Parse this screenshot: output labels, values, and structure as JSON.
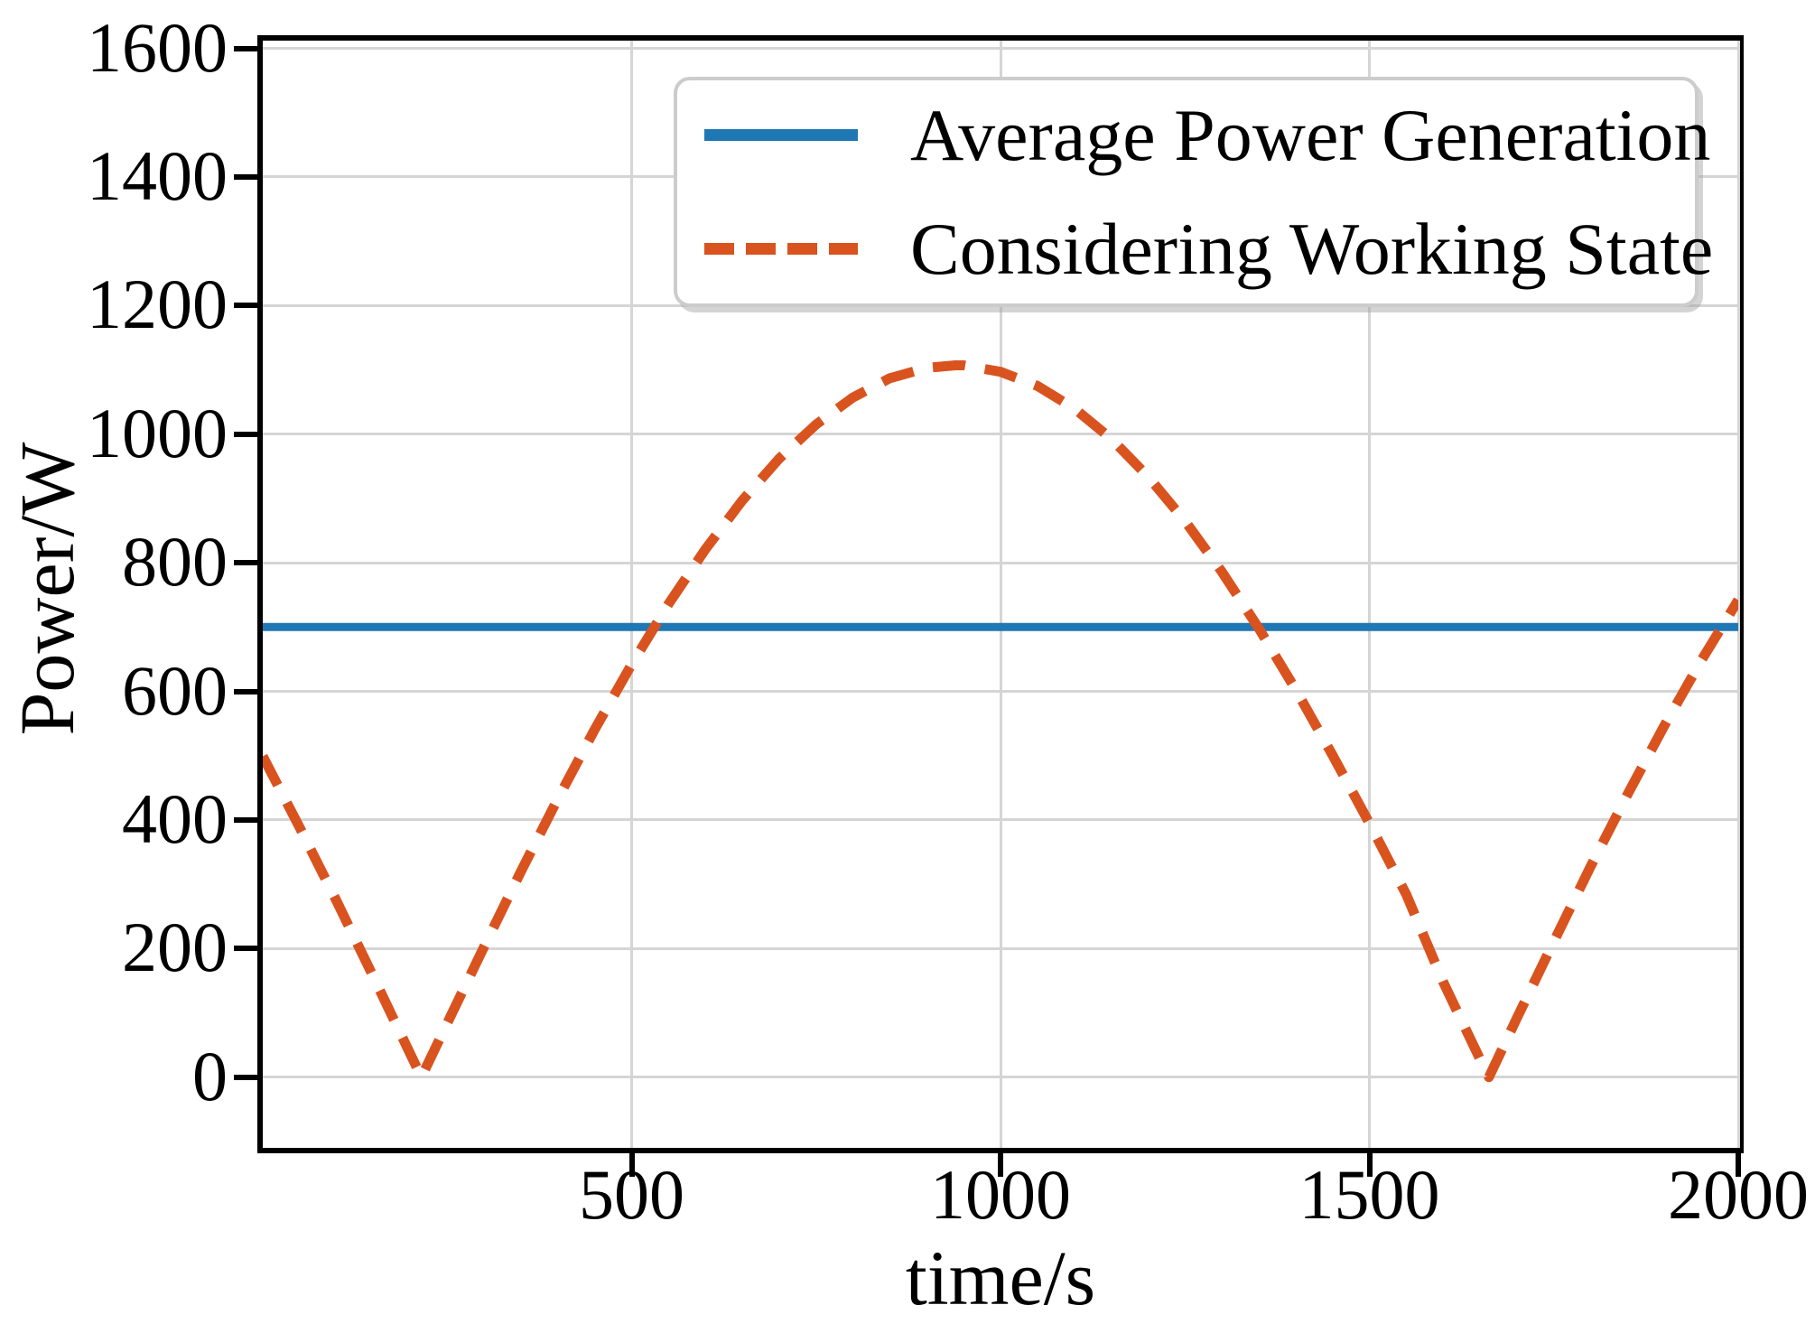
{
  "chart_data": {
    "type": "line",
    "title": "",
    "xlabel": "time/s",
    "ylabel": "Power/W",
    "xlim": [
      0,
      2000
    ],
    "ylim": [
      -110,
      1612
    ],
    "grid": true,
    "grid_color": "#d5d5d5",
    "legend_position": "upper right",
    "xticks": {
      "values": [
        500,
        1000,
        1500,
        2000
      ],
      "labels": [
        "500",
        "1000",
        "1500",
        "2000"
      ]
    },
    "yticks": {
      "values": [
        0,
        200,
        400,
        600,
        800,
        1000,
        1200,
        1400,
        1600
      ],
      "labels": [
        "0",
        "200",
        "400",
        "600",
        "800",
        "1000",
        "1200",
        "1400",
        "1600"
      ]
    },
    "series": [
      {
        "name": "Average Power Generation",
        "color": "#1f77b4",
        "style": "solid",
        "line_width": 9,
        "points": [
          [
            0,
            700
          ],
          [
            2000,
            700
          ]
        ]
      },
      {
        "name": "Considering Working State",
        "color": "#d9531f",
        "style": "dashed",
        "dash_pattern": [
          36,
          22
        ],
        "line_width": 11,
        "points": [
          [
            0,
            499
          ],
          [
            50,
            388
          ],
          [
            100,
            274
          ],
          [
            150,
            156
          ],
          [
            200,
            36
          ],
          [
            215,
            0
          ],
          [
            250,
            84
          ],
          [
            300,
            203
          ],
          [
            350,
            320
          ],
          [
            400,
            433
          ],
          [
            450,
            541
          ],
          [
            500,
            642
          ],
          [
            550,
            736
          ],
          [
            600,
            821
          ],
          [
            650,
            897
          ],
          [
            700,
            962
          ],
          [
            750,
            1015
          ],
          [
            800,
            1057
          ],
          [
            850,
            1087
          ],
          [
            900,
            1103
          ],
          [
            939,
            1107
          ],
          [
            950,
            1107
          ],
          [
            1000,
            1097
          ],
          [
            1050,
            1075
          ],
          [
            1100,
            1040
          ],
          [
            1150,
            993
          ],
          [
            1200,
            934
          ],
          [
            1250,
            865
          ],
          [
            1300,
            786
          ],
          [
            1350,
            698
          ],
          [
            1400,
            603
          ],
          [
            1450,
            501
          ],
          [
            1500,
            395
          ],
          [
            1550,
            284
          ],
          [
            1600,
            148
          ],
          [
            1650,
            28
          ],
          [
            1662,
            0
          ],
          [
            1700,
            92
          ],
          [
            1750,
            211
          ],
          [
            1800,
            328
          ],
          [
            1850,
            440
          ],
          [
            1900,
            547
          ],
          [
            1950,
            648
          ],
          [
            2000,
            742
          ]
        ]
      }
    ]
  }
}
